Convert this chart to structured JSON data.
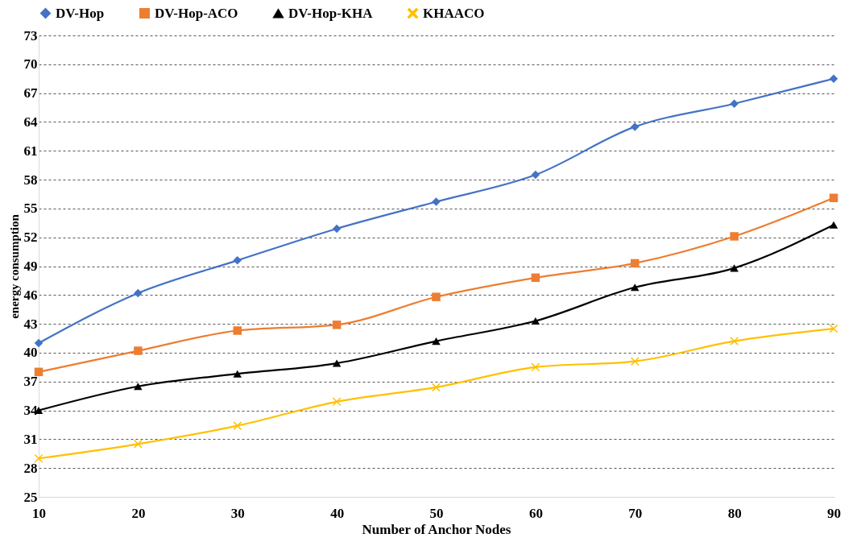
{
  "chart_data": {
    "type": "line",
    "xlabel": "Number of Anchor Nodes",
    "ylabel": "energy consumption",
    "x": [
      10,
      20,
      30,
      40,
      50,
      60,
      70,
      80,
      90
    ],
    "xlim": [
      10,
      90
    ],
    "xticks": [
      10,
      20,
      30,
      40,
      50,
      60,
      70,
      80,
      90
    ],
    "ylim": [
      25,
      73
    ],
    "yticks": [
      25,
      28,
      31,
      34,
      37,
      40,
      43,
      46,
      49,
      52,
      55,
      58,
      61,
      64,
      67,
      70,
      73
    ],
    "grid": "y",
    "legend": "top",
    "line_style": "solid",
    "series": [
      {
        "name": "DV-Hop",
        "color": "#4472c4",
        "marker": "diamond",
        "values": [
          41,
          46.2,
          49.6,
          52.9,
          55.7,
          58.5,
          63.5,
          65.9,
          68.5
        ]
      },
      {
        "name": "DV-Hop-ACO",
        "color": "#ed7d31",
        "marker": "square",
        "values": [
          38,
          40.2,
          42.3,
          42.9,
          45.8,
          47.8,
          49.3,
          52.1,
          56.1
        ]
      },
      {
        "name": "DV-Hop-KHA",
        "color": "#000000",
        "marker": "triangle",
        "values": [
          34,
          36.5,
          37.8,
          38.9,
          41.2,
          43.3,
          46.8,
          48.8,
          53.3
        ]
      },
      {
        "name": "KHAACO",
        "color": "#ffc000",
        "marker": "cross",
        "values": [
          29,
          30.5,
          32.4,
          34.9,
          36.4,
          38.5,
          39.1,
          41.2,
          42.5
        ]
      }
    ]
  }
}
